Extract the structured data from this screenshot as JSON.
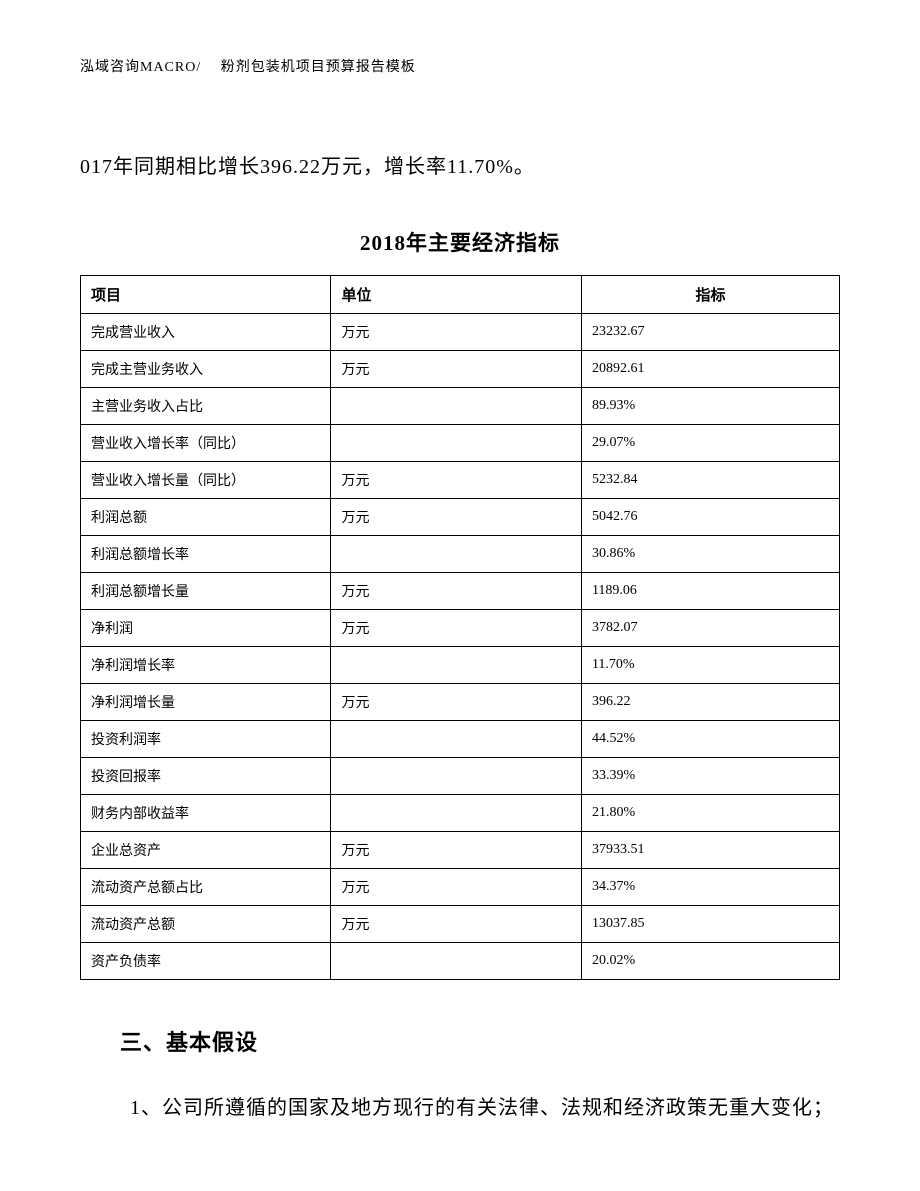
{
  "header": {
    "text": "泓域咨询MACRO/　 粉剂包装机项目预算报告模板"
  },
  "intro": "017年同期相比增长396.22万元，增长率11.70%。",
  "table": {
    "title": "2018年主要经济指标",
    "columns": [
      "项目",
      "单位",
      "指标"
    ],
    "rows": [
      [
        "完成营业收入",
        "万元",
        "23232.67"
      ],
      [
        "完成主营业务收入",
        "万元",
        "20892.61"
      ],
      [
        "主营业务收入占比",
        "",
        "89.93%"
      ],
      [
        "营业收入增长率（同比）",
        "",
        "29.07%"
      ],
      [
        "营业收入增长量（同比）",
        "万元",
        "5232.84"
      ],
      [
        "利润总额",
        "万元",
        "5042.76"
      ],
      [
        "利润总额增长率",
        "",
        "30.86%"
      ],
      [
        "利润总额增长量",
        "万元",
        "1189.06"
      ],
      [
        "净利润",
        "万元",
        "3782.07"
      ],
      [
        "净利润增长率",
        "",
        "11.70%"
      ],
      [
        "净利润增长量",
        "万元",
        "396.22"
      ],
      [
        "投资利润率",
        "",
        "44.52%"
      ],
      [
        "投资回报率",
        "",
        "33.39%"
      ],
      [
        "财务内部收益率",
        "",
        "21.80%"
      ],
      [
        "企业总资产",
        "万元",
        "37933.51"
      ],
      [
        "流动资产总额占比",
        "万元",
        "34.37%"
      ],
      [
        "流动资产总额",
        "万元",
        "13037.85"
      ],
      [
        "资产负债率",
        "",
        "20.02%"
      ]
    ]
  },
  "section": {
    "heading": "三、基本假设",
    "body": "1、公司所遵循的国家及地方现行的有关法律、法规和经济政策无重大变化；"
  }
}
